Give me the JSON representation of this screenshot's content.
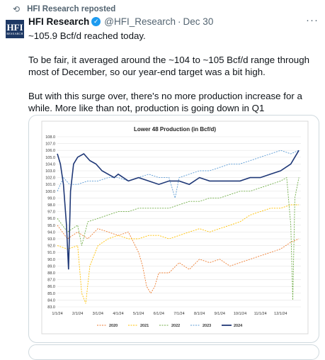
{
  "repost": {
    "icon": "repost-icon",
    "label": "HFI Research reposted"
  },
  "tweet": {
    "avatar_text": "HFI",
    "avatar_sub": "RESEARCH",
    "name": "HFI Research",
    "handle": "@HFI_Research",
    "separator": "·",
    "date": "Dec 30",
    "more_icon": "more-icon",
    "text": [
      "~105.9 Bcf/d reached today.",
      "To be fair, it averaged around the ~104 to ~105 Bcf/d range through most of December, so our year-end target was a bit high.",
      "But with this surge over, there's no more production increase for a while. More like than not, production is going down in Q1"
    ]
  },
  "chart_data": {
    "type": "line",
    "title": "Lower 48 Production (in Bcf/d)",
    "xlabel": "",
    "ylabel": "",
    "ylim": [
      83,
      108
    ],
    "yticks": [
      "108.0",
      "107.0",
      "106.0",
      "105.0",
      "104.0",
      "103.0",
      "102.0",
      "101.0",
      "100.0",
      "99.0",
      "98.0",
      "97.0",
      "96.0",
      "95.0",
      "94.0",
      "93.0",
      "92.0",
      "91.0",
      "90.0",
      "89.0",
      "88.0",
      "87.0",
      "86.0",
      "85.0",
      "84.0",
      "83.0"
    ],
    "x_ticks": [
      "1/1/24",
      "2/1/24",
      "3/1/24",
      "4/1/24",
      "5/1/24",
      "6/1/24",
      "7/1/24",
      "8/1/24",
      "9/1/24",
      "10/1/24",
      "11/1/24",
      "12/1/24"
    ],
    "grid": true,
    "legend_position": "bottom",
    "series": [
      {
        "name": "2020",
        "color": "#ed7d31",
        "dash": true,
        "points": [
          [
            0,
            95
          ],
          [
            0.5,
            93
          ],
          [
            1,
            94
          ],
          [
            1.5,
            93
          ],
          [
            2,
            94.5
          ],
          [
            2.5,
            94
          ],
          [
            3,
            93.5
          ],
          [
            3.5,
            94
          ],
          [
            4,
            91
          ],
          [
            4.2,
            89
          ],
          [
            4.4,
            86
          ],
          [
            4.6,
            85
          ],
          [
            4.8,
            86
          ],
          [
            5,
            88
          ],
          [
            5.5,
            88
          ],
          [
            6,
            89.5
          ],
          [
            6.5,
            88.5
          ],
          [
            7,
            90
          ],
          [
            7.5,
            89.5
          ],
          [
            8,
            90
          ],
          [
            8.5,
            89
          ],
          [
            9,
            89.5
          ],
          [
            9.5,
            90
          ],
          [
            10,
            90.5
          ],
          [
            10.5,
            91
          ],
          [
            11,
            91.5
          ],
          [
            11.5,
            92.5
          ],
          [
            11.9,
            93
          ]
        ]
      },
      {
        "name": "2021",
        "color": "#ffc000",
        "dash": true,
        "points": [
          [
            0,
            92
          ],
          [
            0.5,
            91.5
          ],
          [
            1,
            92
          ],
          [
            1.2,
            85
          ],
          [
            1.4,
            83.5
          ],
          [
            1.6,
            89
          ],
          [
            2,
            92
          ],
          [
            2.5,
            93
          ],
          [
            3,
            93.5
          ],
          [
            3.5,
            93
          ],
          [
            4,
            93
          ],
          [
            4.5,
            93.5
          ],
          [
            5,
            93.5
          ],
          [
            5.5,
            93
          ],
          [
            6,
            93.5
          ],
          [
            6.5,
            94
          ],
          [
            7,
            94.5
          ],
          [
            7.5,
            94
          ],
          [
            8,
            94.5
          ],
          [
            8.5,
            95
          ],
          [
            9,
            95.5
          ],
          [
            9.5,
            96.5
          ],
          [
            10,
            97
          ],
          [
            10.5,
            97.5
          ],
          [
            11,
            97.5
          ],
          [
            11.5,
            98
          ],
          [
            11.9,
            98
          ]
        ]
      },
      {
        "name": "2022",
        "color": "#70ad47",
        "dash": true,
        "points": [
          [
            0,
            96
          ],
          [
            0.5,
            94
          ],
          [
            1,
            95
          ],
          [
            1.2,
            92
          ],
          [
            1.5,
            95.5
          ],
          [
            2,
            96
          ],
          [
            2.5,
            96.5
          ],
          [
            3,
            97
          ],
          [
            3.5,
            97
          ],
          [
            4,
            97.5
          ],
          [
            4.5,
            97.5
          ],
          [
            5,
            97.5
          ],
          [
            5.5,
            97.5
          ],
          [
            6,
            98
          ],
          [
            6.5,
            98.5
          ],
          [
            7,
            98.5
          ],
          [
            7.5,
            99
          ],
          [
            8,
            99
          ],
          [
            8.5,
            99.5
          ],
          [
            9,
            100
          ],
          [
            9.5,
            100
          ],
          [
            10,
            100.5
          ],
          [
            10.5,
            101
          ],
          [
            11,
            101.5
          ],
          [
            11.3,
            102
          ],
          [
            11.5,
            95
          ],
          [
            11.6,
            84
          ],
          [
            11.7,
            99
          ],
          [
            11.9,
            102
          ]
        ]
      },
      {
        "name": "2023",
        "color": "#5b9bd5",
        "dash": true,
        "points": [
          [
            0,
            100
          ],
          [
            0.3,
            102
          ],
          [
            0.6,
            101
          ],
          [
            1,
            101
          ],
          [
            1.5,
            101.5
          ],
          [
            2,
            101.5
          ],
          [
            2.5,
            102
          ],
          [
            3,
            102
          ],
          [
            3.5,
            101.5
          ],
          [
            4,
            102
          ],
          [
            4.5,
            102.5
          ],
          [
            5,
            102
          ],
          [
            5.5,
            102
          ],
          [
            5.8,
            99
          ],
          [
            6,
            102
          ],
          [
            6.5,
            102.5
          ],
          [
            7,
            103
          ],
          [
            7.5,
            103
          ],
          [
            8,
            103.5
          ],
          [
            8.5,
            104
          ],
          [
            9,
            104
          ],
          [
            9.5,
            104.5
          ],
          [
            10,
            105
          ],
          [
            10.5,
            105.5
          ],
          [
            11,
            106
          ],
          [
            11.5,
            105.5
          ],
          [
            11.9,
            106
          ]
        ]
      },
      {
        "name": "2024",
        "color": "#1f3877",
        "dash": false,
        "points": [
          [
            0,
            105.5
          ],
          [
            0.15,
            104
          ],
          [
            0.3,
            101
          ],
          [
            0.45,
            95
          ],
          [
            0.55,
            88.5
          ],
          [
            0.65,
            100
          ],
          [
            0.8,
            104
          ],
          [
            1,
            105
          ],
          [
            1.3,
            105.5
          ],
          [
            1.6,
            104.5
          ],
          [
            1.9,
            104
          ],
          [
            2.2,
            103
          ],
          [
            2.5,
            102.5
          ],
          [
            2.8,
            102
          ],
          [
            3,
            102.5
          ],
          [
            3.5,
            101.5
          ],
          [
            4,
            102
          ],
          [
            4.5,
            101.5
          ],
          [
            5,
            101
          ],
          [
            5.5,
            101.5
          ],
          [
            6,
            101.5
          ],
          [
            6.5,
            101
          ],
          [
            7,
            102
          ],
          [
            7.5,
            101.5
          ],
          [
            8,
            101.5
          ],
          [
            8.5,
            101.5
          ],
          [
            9,
            101.5
          ],
          [
            9.5,
            102
          ],
          [
            10,
            102
          ],
          [
            10.5,
            102.5
          ],
          [
            11,
            103
          ],
          [
            11.5,
            104
          ],
          [
            11.9,
            106
          ]
        ]
      }
    ]
  }
}
